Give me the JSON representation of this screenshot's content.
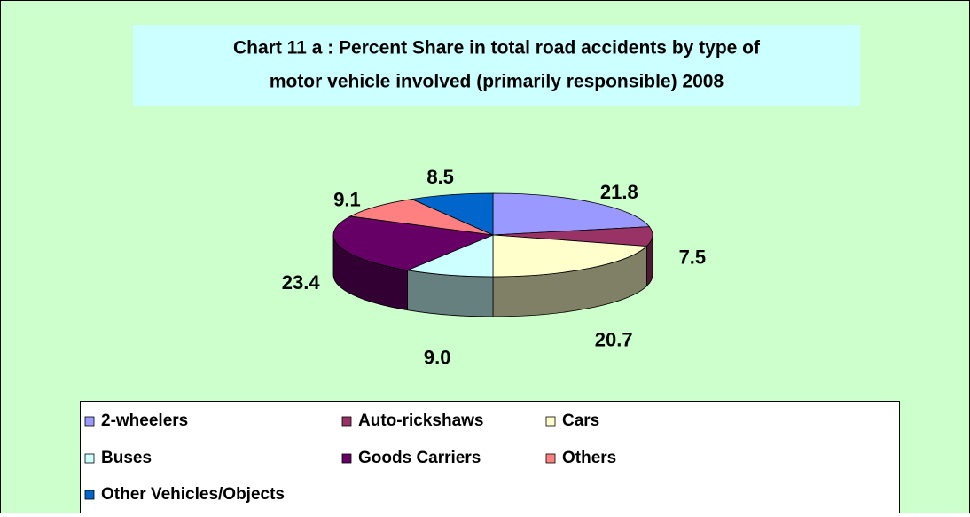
{
  "chart_data": {
    "type": "pie3d",
    "title": "Chart 11 a : Percent Share in total road accidents by type of motor vehicle involved (primarily responsible) 2008",
    "title_lines": [
      "Chart 11 a : Percent Share in total road accidents by type of",
      "motor vehicle involved (primarily responsible) 2008"
    ],
    "categories": [
      "2-wheelers",
      "Auto-rickshaws",
      "Cars",
      "Buses",
      "Goods Carriers",
      "Others",
      "Other Vehicles/Objects"
    ],
    "values": [
      21.8,
      7.5,
      20.7,
      9.0,
      23.4,
      9.1,
      8.5
    ],
    "value_labels": [
      "21.8",
      "7.5",
      "20.7",
      "9.0",
      "23.4",
      "9.1",
      "8.5"
    ],
    "colors": [
      "#9999ff",
      "#993366",
      "#ffffcc",
      "#ccffff",
      "#660066",
      "#ff8080",
      "#0066cc"
    ],
    "side_colors": [
      "#5c5c99",
      "#4d1a33",
      "#808066",
      "#668080",
      "#330033",
      "#804040",
      "#003366"
    ],
    "legend": "bottom"
  }
}
